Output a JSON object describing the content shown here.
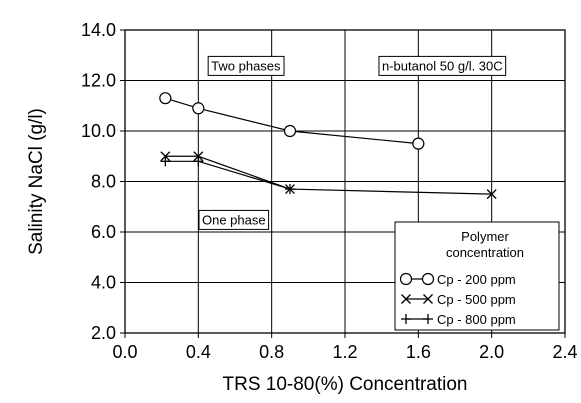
{
  "chart_data": {
    "type": "line",
    "title": "",
    "xlabel": "TRS 10-80(%) Concentration",
    "ylabel": "Salinity NaCl (g/l)",
    "xlim": [
      0.0,
      2.4
    ],
    "ylim": [
      2.0,
      14.0
    ],
    "x_ticks": [
      "0.0",
      "0.4",
      "0.8",
      "1.2",
      "1.6",
      "2.0",
      "2.4"
    ],
    "y_ticks": [
      "2.0",
      "4.0",
      "6.0",
      "8.0",
      "10.0",
      "12.0",
      "14.0"
    ],
    "grid": true,
    "legend_position": "bottom-right",
    "legend_title": "Polymer\nconcentration",
    "series": [
      {
        "name": "Cp - 200 ppm",
        "marker": "circle",
        "x": [
          0.22,
          0.4,
          0.9,
          1.6
        ],
        "y": [
          11.3,
          10.9,
          10.0,
          9.5
        ]
      },
      {
        "name": "Cp - 500 ppm",
        "marker": "x",
        "x": [
          0.22,
          0.4,
          0.9,
          2.0
        ],
        "y": [
          9.0,
          9.0,
          7.7,
          7.5
        ]
      },
      {
        "name": "Cp - 800 ppm",
        "marker": "plus",
        "x": [
          0.22,
          0.4,
          0.9
        ],
        "y": [
          8.8,
          8.8,
          7.7
        ]
      }
    ],
    "annotations": [
      {
        "text": "Two phases",
        "x": 0.47,
        "y": 12.4
      },
      {
        "text": "n-butanol 50 g/l. 30C",
        "x": 2.06,
        "y": 12.4
      },
      {
        "text": "One phase",
        "x": 0.42,
        "y": 6.3
      }
    ]
  }
}
